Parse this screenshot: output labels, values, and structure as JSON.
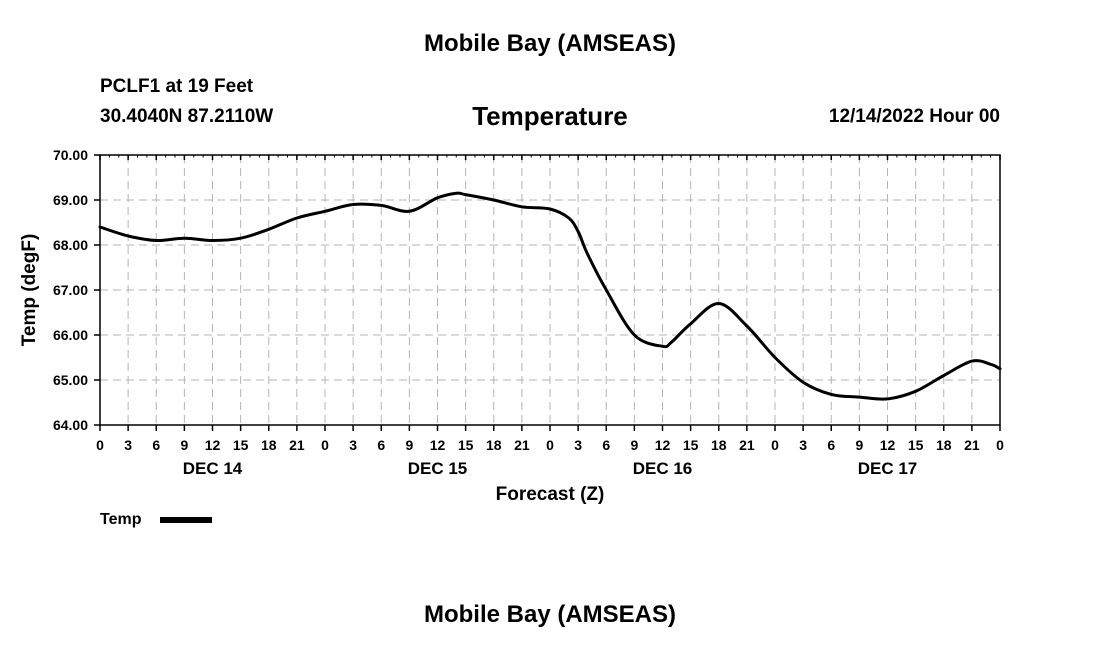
{
  "page": {
    "top_title": "Mobile Bay (AMSEAS)",
    "station": "PCLF1 at 19 Feet",
    "coords": "30.4040N  87.2110W",
    "chart_heading": "Temperature",
    "run_time": "12/14/2022 Hour 00",
    "bottom_title": "Mobile Bay (AMSEAS)"
  },
  "chart_data": {
    "type": "line",
    "title": "Temperature",
    "xlabel": "Forecast (Z)",
    "ylabel": "Temp (degF)",
    "ylim": [
      64.0,
      70.0
    ],
    "xlim_hours": [
      0,
      96
    ],
    "y_ticks": [
      "64.00",
      "65.00",
      "66.00",
      "67.00",
      "68.00",
      "69.00",
      "70.00"
    ],
    "x_tick_labels": [
      "0",
      "3",
      "6",
      "9",
      "12",
      "15",
      "18",
      "21",
      "0",
      "3",
      "6",
      "9",
      "12",
      "15",
      "18",
      "21",
      "0",
      "3",
      "6",
      "9",
      "12",
      "15",
      "18",
      "21",
      "0",
      "3",
      "6",
      "9",
      "12",
      "15",
      "18",
      "21",
      "0"
    ],
    "day_labels": [
      {
        "label": "DEC 14",
        "hour": 12
      },
      {
        "label": "DEC 15",
        "hour": 36
      },
      {
        "label": "DEC 16",
        "hour": 60
      },
      {
        "label": "DEC 17",
        "hour": 84
      }
    ],
    "grid": true,
    "legend": "bottom-left",
    "series": [
      {
        "name": "Temp",
        "color": "#000000",
        "x": [
          0,
          3,
          6,
          9,
          12,
          15,
          18,
          21,
          24,
          27,
          30,
          33,
          36,
          38,
          39,
          42,
          45,
          48,
          50,
          51,
          52,
          54,
          57,
          60,
          61,
          63,
          66,
          69,
          72,
          75,
          78,
          81,
          84,
          87,
          90,
          93,
          95,
          96
        ],
        "y": [
          68.4,
          68.2,
          68.1,
          68.15,
          68.1,
          68.15,
          68.35,
          68.6,
          68.75,
          68.9,
          68.88,
          68.75,
          69.05,
          69.15,
          69.12,
          69.0,
          68.85,
          68.8,
          68.6,
          68.3,
          67.8,
          67.0,
          66.0,
          65.75,
          65.85,
          66.25,
          66.7,
          66.2,
          65.5,
          64.95,
          64.68,
          64.62,
          64.58,
          64.75,
          65.1,
          65.42,
          65.35,
          65.25
        ]
      }
    ]
  }
}
